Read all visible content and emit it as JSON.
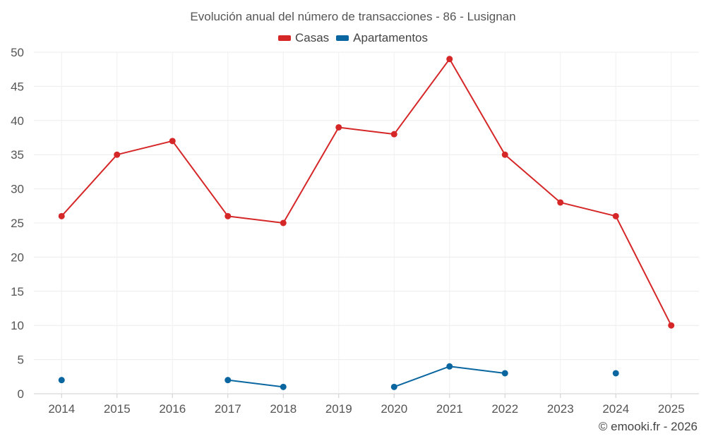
{
  "chart_data": {
    "type": "line",
    "title": "Evolución anual del número de transacciones - 86 - Lusignan",
    "categories": [
      "2014",
      "2015",
      "2016",
      "2017",
      "2018",
      "2019",
      "2020",
      "2021",
      "2022",
      "2023",
      "2024",
      "2025"
    ],
    "ylim": [
      0,
      50
    ],
    "yticks": [
      0,
      5,
      10,
      15,
      20,
      25,
      30,
      35,
      40,
      45,
      50
    ],
    "grid": true,
    "legend_position": "top-center",
    "series": [
      {
        "name": "Casas",
        "color": "#d62728",
        "values": [
          26,
          35,
          37,
          26,
          25,
          39,
          38,
          49,
          35,
          28,
          26,
          10
        ]
      },
      {
        "name": "Apartamentos",
        "color": "#0a66a0",
        "values": [
          2,
          null,
          null,
          2,
          1,
          null,
          1,
          4,
          3,
          null,
          3,
          null
        ]
      }
    ]
  },
  "footer": {
    "credit": "© emooki.fr - 2026"
  }
}
